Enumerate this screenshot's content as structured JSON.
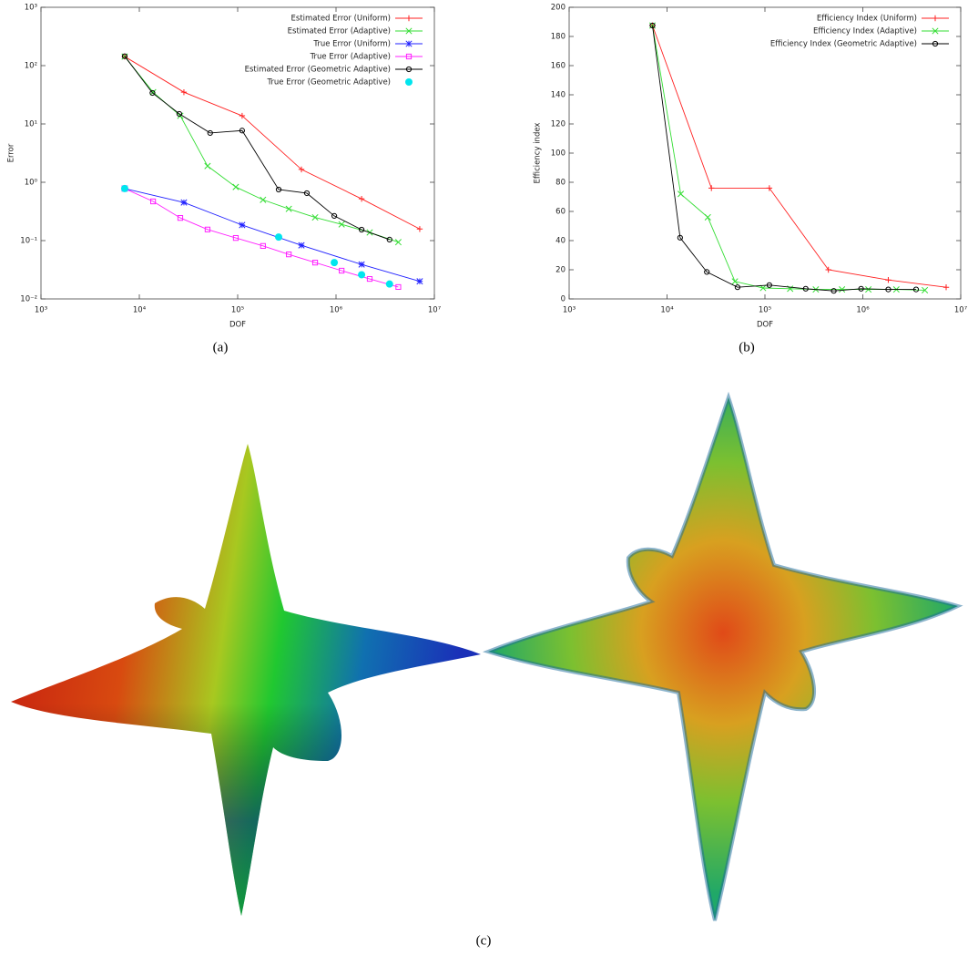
{
  "chart_data": [
    {
      "type": "line",
      "xlabel": "DOF",
      "ylabel": "Error",
      "xscale": "log",
      "yscale": "log",
      "xlim": [
        1000,
        10000000
      ],
      "ylim": [
        0.01,
        1000
      ],
      "xticks": [
        {
          "value": 1000,
          "label": "10³"
        },
        {
          "value": 10000,
          "label": "10⁴"
        },
        {
          "value": 100000,
          "label": "10⁵"
        },
        {
          "value": 1000000,
          "label": "10⁶"
        },
        {
          "value": 10000000,
          "label": "10⁷"
        }
      ],
      "yticks": [
        {
          "value": 0.01,
          "label": "10⁻²"
        },
        {
          "value": 0.1,
          "label": "10⁻¹"
        },
        {
          "value": 1,
          "label": "10⁰"
        },
        {
          "value": 10,
          "label": "10¹"
        },
        {
          "value": 100,
          "label": "10²"
        },
        {
          "value": 1000,
          "label": "10³"
        }
      ],
      "legend": "upper right",
      "series": [
        {
          "name": "Estimated Error (Uniform)",
          "color": "#ff2020",
          "marker": "plus",
          "x": [
            7100,
            28400,
            111000,
            445000,
            1820000,
            7100000
          ],
          "values": [
            143,
            35,
            13.8,
            1.66,
            0.52,
            0.158
          ]
        },
        {
          "name": "Estimated Error (Adaptive)",
          "color": "#33dd33",
          "marker": "cross",
          "x": [
            7100,
            13800,
            26100,
            49400,
            95700,
            181000,
            331000,
            613000,
            1140000,
            2200000,
            4300000
          ],
          "values": [
            143,
            35,
            13.8,
            1.9,
            0.83,
            0.5,
            0.35,
            0.25,
            0.19,
            0.138,
            0.094
          ]
        },
        {
          "name": "True Error (Uniform)",
          "color": "#2020ff",
          "marker": "star",
          "x": [
            7100,
            28400,
            111000,
            445000,
            1820000,
            7100000
          ],
          "values": [
            0.78,
            0.45,
            0.185,
            0.083,
            0.039,
            0.02
          ]
        },
        {
          "name": "True Error (Adaptive)",
          "color": "#ff20ff",
          "marker": "square",
          "x": [
            7100,
            13800,
            26100,
            49400,
            95700,
            181000,
            331000,
            613000,
            1140000,
            2200000,
            4300000
          ],
          "values": [
            0.78,
            0.47,
            0.245,
            0.155,
            0.111,
            0.081,
            0.058,
            0.042,
            0.0305,
            0.022,
            0.016
          ]
        },
        {
          "name": "Estimated Error (Geometric Adaptive)",
          "color": "#000000",
          "marker": "circle",
          "x": [
            7100,
            13600,
            25500,
            52500,
            111000,
            261000,
            505000,
            960000,
            1820000,
            3500000
          ],
          "values": [
            145,
            34,
            14.9,
            7.0,
            7.7,
            0.75,
            0.65,
            0.265,
            0.154,
            0.104
          ]
        },
        {
          "name": "True Error (Geometric Adaptive)",
          "color": "#00e5ee",
          "marker": "dot",
          "line": false,
          "x": [
            7100,
            261000,
            960000,
            1820000,
            3500000
          ],
          "values": [
            0.78,
            0.115,
            0.042,
            0.026,
            0.018
          ]
        }
      ]
    },
    {
      "type": "line",
      "xlabel": "DOF",
      "ylabel": "Efficiency index",
      "xscale": "log",
      "xlim": [
        1000,
        10000000
      ],
      "ylim": [
        0,
        200
      ],
      "xticks": [
        {
          "value": 1000,
          "label": "10³"
        },
        {
          "value": 10000,
          "label": "10⁴"
        },
        {
          "value": 100000,
          "label": "10⁵"
        },
        {
          "value": 1000000,
          "label": "10⁶"
        },
        {
          "value": 10000000,
          "label": "10⁷"
        }
      ],
      "yticks": [
        0,
        20,
        40,
        60,
        80,
        100,
        120,
        140,
        160,
        180,
        200
      ],
      "legend": "upper right",
      "series": [
        {
          "name": "Efficiency Index (Uniform)",
          "color": "#ff2020",
          "marker": "plus",
          "x": [
            7100,
            28400,
            111000,
            445000,
            1820000,
            7100000
          ],
          "values": [
            187.5,
            76,
            76,
            20,
            13,
            8
          ]
        },
        {
          "name": "Efficiency Index (Adaptive)",
          "color": "#33dd33",
          "marker": "cross",
          "x": [
            7100,
            13800,
            26100,
            49400,
            95700,
            181000,
            331000,
            613000,
            1140000,
            2200000,
            4300000
          ],
          "values": [
            187.5,
            72,
            56,
            12,
            7.5,
            7,
            6.5,
            6.5,
            6.5,
            6.5,
            6
          ]
        },
        {
          "name": "Efficiency Index (Geometric Adaptive)",
          "color": "#000000",
          "marker": "circle",
          "x": [
            7100,
            13600,
            25500,
            52500,
            111000,
            261000,
            505000,
            960000,
            1820000,
            3500000
          ],
          "values": [
            187.5,
            42,
            18.5,
            8,
            9.5,
            7,
            5.5,
            7,
            6.5,
            6.5
          ]
        }
      ]
    }
  ],
  "captions": [
    "(a)",
    "(b)",
    "(c)"
  ]
}
